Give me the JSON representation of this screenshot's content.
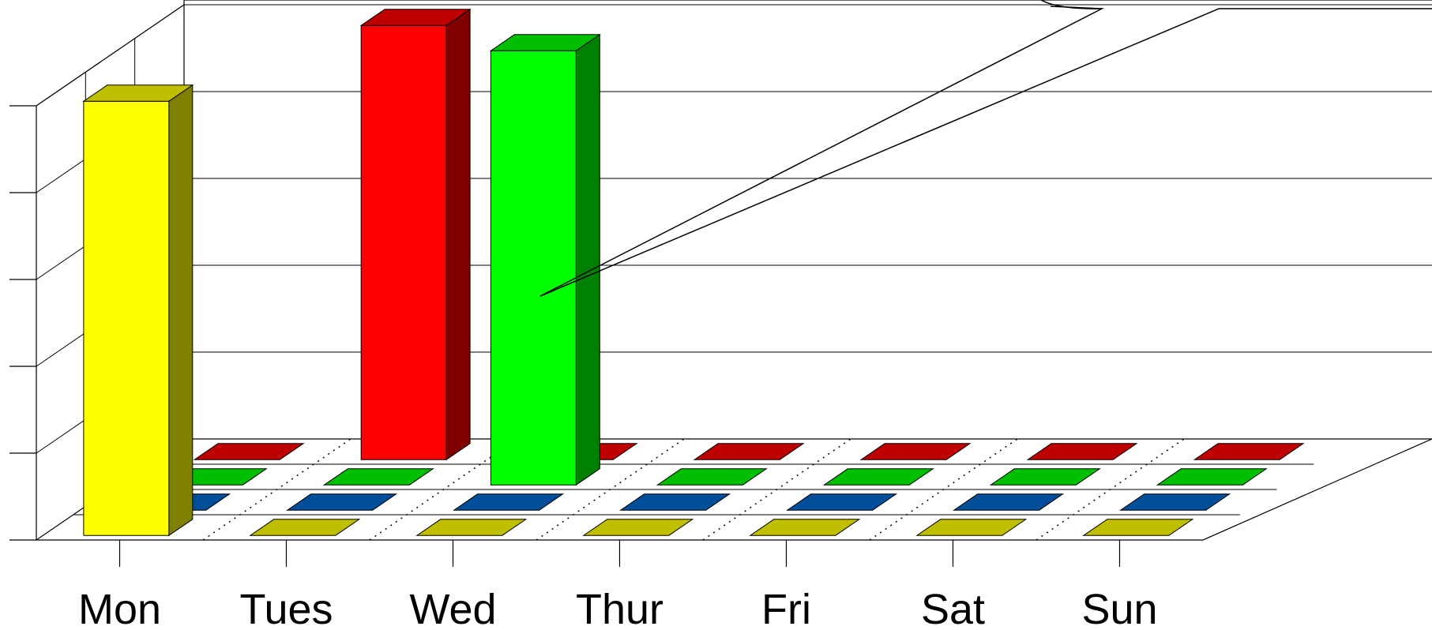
{
  "chart_data": {
    "type": "bar",
    "categories": [
      "Mon",
      "Tues",
      "Wed",
      "Thur",
      "Fri",
      "Sat",
      "Sun"
    ],
    "series": [
      {
        "values": [
          5,
          0,
          0,
          0,
          0,
          0,
          0
        ],
        "color": "#ffff00"
      },
      {
        "values": [
          0,
          0,
          0,
          0,
          0,
          0,
          0
        ],
        "color": "#0066cc"
      },
      {
        "values": [
          0,
          0,
          5,
          0,
          0,
          0,
          0
        ],
        "color": "#00ff00"
      },
      {
        "values": [
          0,
          5,
          0,
          0,
          0,
          0,
          0
        ],
        "color": "#ff0000"
      }
    ],
    "ylim": [
      0,
      5
    ],
    "grid": true,
    "style": "3d-clustered-depth"
  }
}
